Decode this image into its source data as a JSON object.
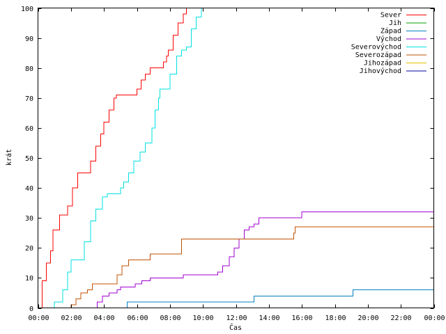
{
  "chart_data": {
    "type": "line",
    "title": "",
    "xlabel": "Čas",
    "ylabel": "krát",
    "xlim": [
      0,
      24
    ],
    "ylim": [
      0,
      100
    ],
    "x_unit": "hours",
    "x_ticks": [
      0,
      2,
      4,
      6,
      8,
      10,
      12,
      14,
      16,
      18,
      20,
      22,
      24
    ],
    "x_tick_labels": [
      "00:00",
      "02:00",
      "04:00",
      "06:00",
      "08:00",
      "10:00",
      "12:00",
      "14:00",
      "16:00",
      "18:00",
      "20:00",
      "22:00",
      "00:00"
    ],
    "y_ticks": [
      0,
      10,
      20,
      30,
      40,
      50,
      60,
      70,
      80,
      90,
      100
    ],
    "y_tick_labels": [
      "0",
      "10",
      "20",
      "30",
      "40",
      "50",
      "60",
      "70",
      "80",
      "90",
      "100"
    ],
    "grid": false,
    "legend_position": "top-right",
    "series": [
      {
        "name": "Sever",
        "color": "#ff0000",
        "x": [
          0.0,
          0.25,
          0.5,
          0.75,
          0.9,
          1.3,
          1.4,
          1.6,
          1.8,
          2.1,
          2.4,
          2.65,
          2.75,
          3.2,
          3.5,
          3.8,
          4.0,
          4.3,
          4.6,
          4.75,
          4.9,
          5.9,
          6.0,
          6.25,
          6.5,
          6.8,
          7.2,
          7.3,
          7.6,
          7.8,
          7.9,
          8.2,
          8.5,
          8.8,
          9.0
        ],
        "y": [
          0,
          9,
          15,
          19,
          26,
          31,
          31,
          31,
          34,
          40,
          45,
          45,
          45,
          49,
          54,
          58,
          62,
          66,
          70,
          71,
          71,
          71,
          73,
          76,
          78,
          80,
          80,
          80,
          82,
          84,
          86,
          91,
          95,
          98,
          100
        ]
      },
      {
        "name": "Jih",
        "color": "#00a000",
        "x": [],
        "y": []
      },
      {
        "name": "Západ",
        "color": "#0080c0",
        "x": [
          0,
          5.3,
          5.4,
          13.0,
          13.1,
          19.0,
          19.1,
          24.0
        ],
        "y": [
          0,
          0,
          2,
          2,
          4,
          4,
          6,
          6
        ]
      },
      {
        "name": "Východ",
        "color": "#a000d0",
        "x": [
          0,
          3.5,
          3.6,
          3.9,
          4.3,
          4.8,
          5.0,
          5.5,
          5.9,
          6.3,
          6.8,
          8.8,
          9.1,
          10.9,
          11.2,
          11.6,
          11.9,
          12.2,
          12.5,
          12.8,
          13.1,
          13.4,
          15.9,
          16.0,
          24.0
        ],
        "y": [
          0,
          0,
          2,
          4,
          5,
          6,
          7,
          7,
          8,
          9,
          10,
          11,
          11,
          12,
          14,
          17,
          20,
          23,
          26,
          27,
          28,
          30,
          30,
          32,
          32
        ]
      },
      {
        "name": "Severovýchod",
        "color": "#00e0e0",
        "x": [
          0,
          0.9,
          1.0,
          1.4,
          1.5,
          1.8,
          2.0,
          2.6,
          2.8,
          3.2,
          3.5,
          3.9,
          4.2,
          4.6,
          5.0,
          5.2,
          5.5,
          5.8,
          6.2,
          6.5,
          6.9,
          7.1,
          7.3,
          7.4,
          7.6,
          7.7,
          8.0,
          8.4,
          8.7,
          9.0,
          9.3,
          9.6,
          9.9
        ],
        "y": [
          0,
          0,
          2,
          2,
          6,
          12,
          16,
          16,
          22,
          29,
          33,
          37,
          38,
          38,
          40,
          42,
          45,
          49,
          52,
          55,
          60,
          66,
          70,
          73,
          73,
          73,
          78,
          84,
          86,
          87,
          93,
          97,
          100
        ]
      },
      {
        "name": "Severozápad",
        "color": "#c05000",
        "x": [
          0,
          1.9,
          2.0,
          2.3,
          2.6,
          3.0,
          3.3,
          4.5,
          4.8,
          5.1,
          5.5,
          6.5,
          6.8,
          8.5,
          8.7,
          15.4,
          15.5,
          15.6,
          24.0
        ],
        "y": [
          0,
          0,
          1,
          3,
          5,
          6,
          8,
          8,
          11,
          14,
          16,
          16,
          18,
          18,
          23,
          23,
          25,
          27,
          27
        ]
      },
      {
        "name": "Jihozápad",
        "color": "#e0c000",
        "x": [],
        "y": []
      },
      {
        "name": "Jihovýchod",
        "color": "#0000a0",
        "x": [],
        "y": []
      }
    ]
  }
}
